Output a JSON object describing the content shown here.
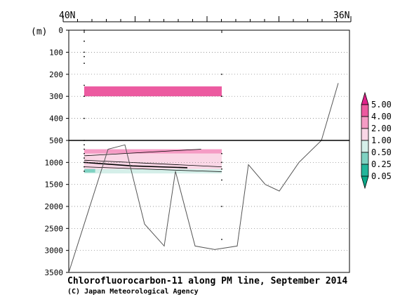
{
  "chart_data": {
    "type": "contour-section",
    "title": "Chlorofluorocarbon-11 along PM line, September 2014",
    "credit": "(C) Japan Meteorological Agency",
    "x_axis": {
      "left_label": "40N",
      "right_label": "36N"
    },
    "y_axis": {
      "unit_label": "(m)",
      "upper_panel": {
        "range": [
          0,
          500
        ],
        "ticks": [
          0,
          100,
          200,
          300,
          400,
          500
        ]
      },
      "lower_panel": {
        "range": [
          500,
          3500
        ],
        "ticks": [
          1000,
          1500,
          2000,
          2500,
          3000,
          3500
        ]
      }
    },
    "colorbar": {
      "levels": [
        "5.00",
        "4.00",
        "2.00",
        "1.00",
        "0.50",
        "0.25",
        "0.05"
      ],
      "colors": [
        "#e0218a",
        "#ec5aa0",
        "#f59cc5",
        "#fad7e6",
        "#d5efe9",
        "#7fd2c2",
        "#23b59b",
        "#0aa888"
      ]
    },
    "station_x": [
      0.055,
      0.545
    ],
    "sample_depths": {
      "station_1": [
        0,
        50,
        100,
        120,
        150,
        250,
        300,
        400,
        500,
        600,
        700,
        800,
        900,
        1000,
        1100,
        1200
      ],
      "station_2": [
        200,
        300,
        800,
        1000,
        1150,
        1400,
        2000,
        2750
      ]
    },
    "bottom_topography": {
      "x": [
        0.0,
        0.07,
        0.14,
        0.2,
        0.27,
        0.34,
        0.38,
        0.45,
        0.52,
        0.6,
        0.64,
        0.7,
        0.75,
        0.82,
        0.9,
        0.96
      ],
      "depth": [
        3500,
        2100,
        700,
        600,
        2400,
        2900,
        1200,
        2900,
        2980,
        2900,
        1050,
        1500,
        1650,
        1000,
        500,
        240
      ]
    }
  }
}
